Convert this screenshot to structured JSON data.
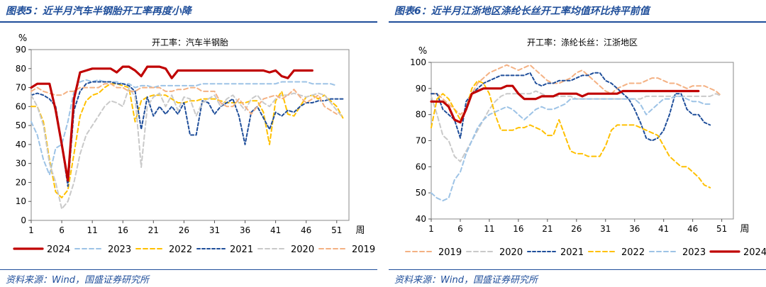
{
  "chart_data": [
    {
      "type": "line",
      "figure_title": "图表5：近半月汽车半钢胎开工率再度小降",
      "title": "开工率：汽车半钢胎",
      "ylabel": "%",
      "xlabel": "周",
      "ylim": [
        0,
        90
      ],
      "yticks": [
        0,
        10,
        20,
        30,
        40,
        50,
        60,
        70,
        80,
        90
      ],
      "xticks": [
        1,
        6,
        11,
        16,
        21,
        26,
        31,
        36,
        41,
        46,
        51
      ],
      "x_range": [
        1,
        53
      ],
      "source": "资料来源：Wind，国盛证券研究所",
      "legend_order": [
        "2024",
        "2023",
        "2022",
        "2021",
        "2020",
        "2019"
      ],
      "series": [
        {
          "name": "2024",
          "color": "#c00000",
          "dash": "",
          "width": 3.2,
          "x_start": 1,
          "values": [
            70,
            72,
            72,
            72,
            58,
            40,
            21,
            64,
            78,
            79,
            80,
            80,
            80,
            80,
            78,
            81,
            81,
            79,
            76,
            81,
            81,
            81,
            80,
            75,
            79,
            79,
            79,
            79,
            79,
            79,
            79,
            79,
            79,
            79,
            79,
            79,
            79,
            79,
            79,
            78,
            79,
            76,
            75,
            79,
            79,
            79,
            79
          ]
        },
        {
          "name": "2023",
          "color": "#9dc3e6",
          "dash": "6 4",
          "width": 2,
          "x_start": 1,
          "values": [
            52,
            45,
            32,
            24,
            38,
            40,
            52,
            68,
            73,
            74,
            73,
            74,
            73,
            73,
            73,
            72,
            72,
            70,
            71,
            71,
            70,
            71,
            71,
            71,
            71,
            71,
            71,
            71,
            72,
            72,
            72,
            72,
            72,
            72,
            72,
            72,
            72,
            72,
            72,
            72,
            72,
            73,
            73,
            73,
            73,
            73,
            72,
            72,
            72,
            72,
            71
          ]
        },
        {
          "name": "2022",
          "color": "#ffc000",
          "dash": "6 4",
          "width": 2,
          "x_start": 1,
          "values": [
            60,
            60,
            52,
            32,
            15,
            12,
            16,
            35,
            55,
            63,
            66,
            67,
            70,
            72,
            72,
            71,
            70,
            52,
            63,
            65,
            66,
            66,
            66,
            64,
            62,
            62,
            63,
            63,
            64,
            64,
            64,
            63,
            62,
            62,
            62,
            62,
            63,
            63,
            57,
            40,
            63,
            68,
            56,
            55,
            60,
            65,
            66,
            64,
            66,
            63,
            60,
            54
          ]
        },
        {
          "name": "2021",
          "color": "#1f4e9a",
          "dash": "4 3",
          "width": 2,
          "x_start": 1,
          "values": [
            66,
            67,
            66,
            64,
            60,
            40,
            18,
            58,
            68,
            72,
            73,
            73,
            73,
            73,
            72,
            72,
            71,
            68,
            48,
            65,
            55,
            60,
            56,
            60,
            56,
            62,
            45,
            45,
            63,
            62,
            56,
            60,
            62,
            64,
            55,
            40,
            57,
            60,
            54,
            48,
            57,
            55,
            58,
            57,
            60,
            62,
            62,
            63,
            63,
            64,
            64,
            64
          ]
        },
        {
          "name": "2020",
          "color": "#c9c9c9",
          "dash": "6 4",
          "width": 2,
          "x_start": 1,
          "values": [
            66,
            60,
            50,
            30,
            20,
            6,
            10,
            20,
            35,
            45,
            50,
            55,
            60,
            63,
            62,
            60,
            70,
            65,
            28,
            60,
            65,
            67,
            60,
            66,
            58,
            65,
            64,
            55,
            62,
            64,
            66,
            60,
            64,
            66,
            62,
            58,
            64,
            66,
            62,
            60,
            64,
            66,
            66,
            67,
            66,
            65,
            66,
            67,
            66,
            62,
            58,
            54
          ]
        },
        {
          "name": "2019",
          "color": "#f4b183",
          "dash": "6 4",
          "width": 2,
          "x_start": 1,
          "values": [
            68,
            70,
            68,
            67,
            66,
            66,
            68,
            68,
            70,
            70,
            70,
            70,
            72,
            72,
            70,
            70,
            68,
            68,
            70,
            70,
            70,
            70,
            68,
            68,
            69,
            69,
            70,
            70,
            68,
            68,
            68,
            62,
            60,
            60,
            64,
            60,
            56,
            60,
            64,
            65,
            66,
            64,
            66,
            69,
            65,
            62,
            64,
            66,
            60,
            58,
            56
          ]
        }
      ]
    },
    {
      "type": "line",
      "figure_title": "图表6：近半月江浙地区涤纶长丝开工率均值环比持平前值",
      "title": "开工率：涤纶长丝：江浙地区",
      "ylabel": "%",
      "xlabel": "周",
      "ylim": [
        40,
        100
      ],
      "yticks": [
        40,
        50,
        60,
        70,
        80,
        90,
        100
      ],
      "xticks": [
        1,
        6,
        11,
        16,
        21,
        26,
        31,
        36,
        41,
        46,
        51
      ],
      "x_range": [
        1,
        53
      ],
      "source": "资料来源：Wind，国盛证券研究所",
      "legend_order": [
        "2019",
        "2020",
        "2021",
        "2022",
        "2023",
        "2024"
      ],
      "series": [
        {
          "name": "2019",
          "color": "#f4b183",
          "dash": "6 4",
          "width": 2,
          "x_start": 1,
          "values": [
            88,
            88,
            86,
            84,
            82,
            80,
            82,
            88,
            92,
            94,
            96,
            97,
            98,
            99,
            98,
            97,
            98,
            99,
            97,
            95,
            93,
            92,
            92,
            93,
            94,
            96,
            97,
            95,
            93,
            91,
            89,
            88,
            90,
            91,
            92,
            92,
            92,
            93,
            94,
            94,
            93,
            92,
            92,
            91,
            90,
            91,
            91,
            91,
            90,
            89,
            87
          ]
        },
        {
          "name": "2020",
          "color": "#c9c9c9",
          "dash": "6 4",
          "width": 2,
          "x_start": 1,
          "values": [
            87,
            80,
            72,
            70,
            64,
            62,
            66,
            70,
            74,
            78,
            82,
            85,
            87,
            88,
            88,
            88,
            88,
            88,
            89,
            88,
            87,
            87,
            87,
            87,
            87,
            86,
            86,
            86,
            86,
            86,
            86,
            86,
            86,
            86,
            86,
            86,
            86,
            87,
            87,
            87,
            87,
            87,
            87,
            87,
            87,
            87,
            87,
            87,
            87,
            88,
            87
          ]
        },
        {
          "name": "2021",
          "color": "#1f4e9a",
          "dash": "4 3",
          "width": 2,
          "x_start": 1,
          "values": [
            88,
            88,
            82,
            80,
            78,
            71,
            85,
            88,
            90,
            92,
            93,
            94,
            95,
            95,
            95,
            95,
            95,
            96,
            92,
            91,
            92,
            92,
            93,
            93,
            93,
            94,
            95,
            95,
            96,
            96,
            93,
            92,
            90,
            88,
            86,
            82,
            77,
            71,
            70,
            71,
            74,
            80,
            88,
            88,
            82,
            80,
            80,
            77,
            76
          ]
        },
        {
          "name": "2022",
          "color": "#ffc000",
          "dash": "6 4",
          "width": 2,
          "x_start": 1,
          "values": [
            75,
            86,
            88,
            86,
            82,
            78,
            82,
            90,
            93,
            92,
            88,
            80,
            74,
            74,
            74,
            75,
            75,
            76,
            75,
            74,
            72,
            72,
            78,
            72,
            66,
            65,
            65,
            64,
            64,
            64,
            68,
            74,
            76,
            76,
            76,
            76,
            75,
            74,
            73,
            72,
            68,
            64,
            62,
            60,
            60,
            58,
            56,
            53,
            52
          ]
        },
        {
          "name": "2023",
          "color": "#9dc3e6",
          "dash": "6 4",
          "width": 2,
          "x_start": 1,
          "values": [
            50,
            48,
            47,
            48,
            55,
            58,
            65,
            70,
            75,
            78,
            80,
            81,
            82,
            83,
            82,
            80,
            78,
            80,
            82,
            83,
            82,
            82,
            83,
            84,
            86,
            86,
            86,
            86,
            86,
            86,
            86,
            86,
            86,
            86,
            86,
            86,
            84,
            80,
            82,
            84,
            86,
            86,
            87,
            87,
            86,
            85,
            85,
            84,
            84
          ]
        },
        {
          "name": "2024",
          "color": "#c00000",
          "dash": "",
          "width": 3.2,
          "x_start": 1,
          "values": [
            85,
            85,
            85,
            83,
            78,
            77,
            82,
            88,
            89,
            90,
            90,
            90,
            90,
            91,
            91,
            88,
            86,
            86,
            86,
            87,
            87,
            87,
            88,
            88,
            88,
            88,
            87,
            88,
            88,
            88,
            88,
            88,
            88,
            89,
            89,
            89,
            89,
            89,
            89,
            89,
            89,
            89,
            89,
            89,
            89,
            89,
            89
          ]
        }
      ]
    }
  ]
}
